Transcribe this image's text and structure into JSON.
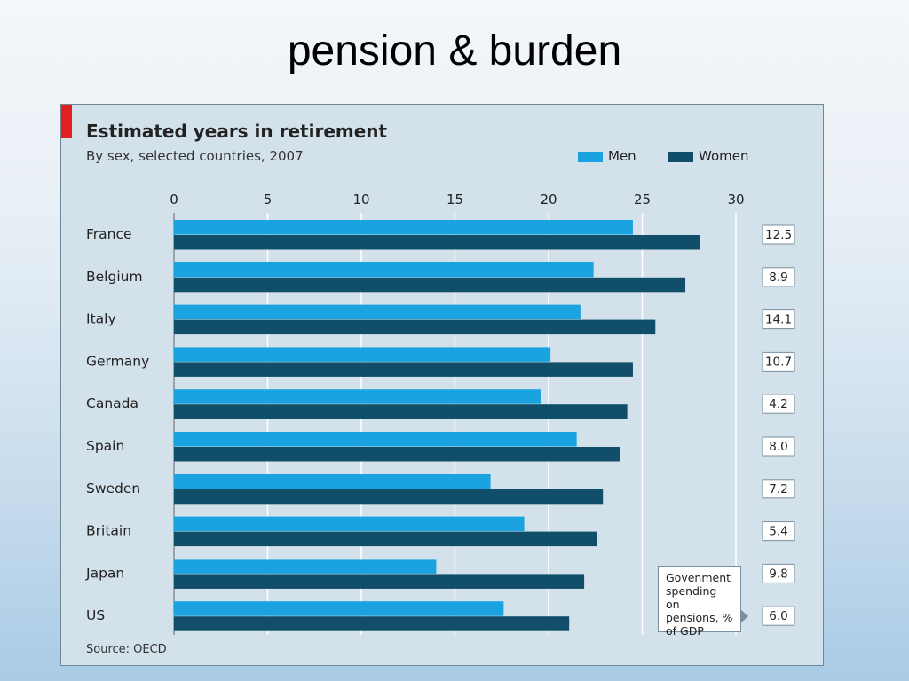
{
  "slide": {
    "title": "pension & burden"
  },
  "chart_data": {
    "type": "bar",
    "orientation": "horizontal",
    "title": "Estimated years in retirement",
    "subtitle": "By sex, selected countries, 2007",
    "categories": [
      "France",
      "Belgium",
      "Italy",
      "Germany",
      "Canada",
      "Spain",
      "Sweden",
      "Britain",
      "Japan",
      "US"
    ],
    "series": [
      {
        "name": "Men",
        "color": "#1aa3e0",
        "values": [
          24.5,
          22.4,
          21.7,
          20.1,
          19.6,
          21.5,
          16.9,
          18.7,
          14.0,
          17.6
        ]
      },
      {
        "name": "Women",
        "color": "#114e6a",
        "values": [
          28.1,
          27.3,
          25.7,
          24.5,
          24.2,
          23.8,
          22.9,
          22.6,
          21.9,
          21.1
        ]
      }
    ],
    "xlim": [
      0,
      30
    ],
    "xticks": [
      "0",
      "5",
      "10",
      "15",
      "20",
      "25",
      "30"
    ],
    "side_values": [
      "12.5",
      "8.9",
      "14.1",
      "10.7",
      "4.2",
      "8.0",
      "7.2",
      "5.4",
      "9.8",
      "6.0"
    ],
    "side_label": "Govenment spending on pensions, % of GDP",
    "source": "Source: OECD",
    "legend_position": "top-right",
    "grid": true
  }
}
